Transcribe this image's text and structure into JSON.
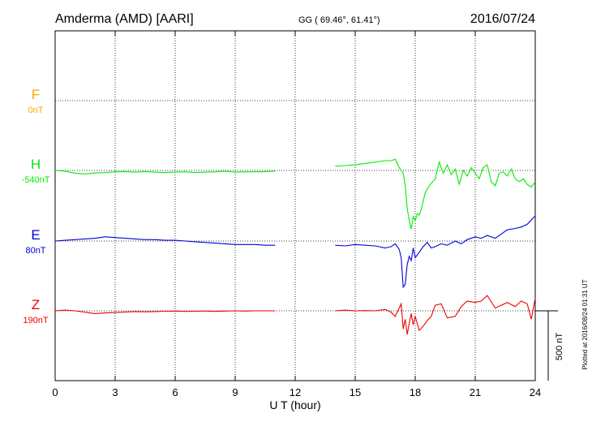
{
  "header": {
    "station": "Amderma (AMD)  [AARI]",
    "coords": "GG ( 69.46°,  61.41°)",
    "date": "2016/07/24"
  },
  "footer": {
    "plotted": "Plotted at 2016/08/24 01:31 UT"
  },
  "scale": {
    "label": "500 nT",
    "value_nT": 500
  },
  "chart_data": {
    "type": "line",
    "xlabel": "U T (hour)",
    "ylabel": "",
    "xlim": [
      0,
      24
    ],
    "xticks": [
      "0",
      "3",
      "6",
      "9",
      "12",
      "15",
      "18",
      "21",
      "24"
    ],
    "grid": true,
    "series": [
      {
        "name": "F",
        "baseline_label": "0nT",
        "color": "#ffa500",
        "x": [],
        "y": []
      },
      {
        "name": "H",
        "baseline_label": "-540nT",
        "color": "#00ee00",
        "x": [
          0,
          0.5,
          1.0,
          1.5,
          2.0,
          2.5,
          3.0,
          3.5,
          4.0,
          4.5,
          5.0,
          5.5,
          6.0,
          6.5,
          7.0,
          7.5,
          8.0,
          8.5,
          9.0,
          9.5,
          10.0,
          10.5,
          11.0,
          null,
          14.0,
          14.5,
          15.0,
          15.5,
          16.0,
          16.5,
          16.8,
          17.0,
          17.2,
          17.4,
          17.5,
          17.6,
          17.7,
          17.8,
          17.9,
          18.0,
          18.1,
          18.2,
          18.3,
          18.5,
          18.7,
          19.0,
          19.2,
          19.4,
          19.6,
          19.8,
          20.0,
          20.2,
          20.4,
          20.6,
          20.8,
          21.0,
          21.2,
          21.4,
          21.6,
          21.8,
          22.0,
          22.2,
          22.4,
          22.6,
          22.8,
          23.0,
          23.2,
          23.4,
          23.6,
          23.8,
          24.0
        ],
        "y": [
          -540,
          -545,
          -560,
          -565,
          -558,
          -555,
          -550,
          -548,
          -552,
          -548,
          -552,
          -555,
          -552,
          -550,
          -555,
          -552,
          -550,
          -545,
          -552,
          -550,
          -550,
          -548,
          -545,
          null,
          -510,
          -505,
          -500,
          -490,
          -480,
          -470,
          -470,
          -460,
          -520,
          -560,
          -650,
          -810,
          -900,
          -960,
          -870,
          -900,
          -850,
          -860,
          -820,
          -700,
          -650,
          -600,
          -480,
          -560,
          -500,
          -570,
          -530,
          -640,
          -540,
          -580,
          -520,
          -560,
          -600,
          -520,
          -500,
          -620,
          -650,
          -560,
          -550,
          -580,
          -530,
          -600,
          -620,
          -600,
          -640,
          -660,
          -620
        ]
      },
      {
        "name": "E",
        "baseline_label": "80nT",
        "color": "#0000dd",
        "x": [
          0,
          0.5,
          1.0,
          1.5,
          2.0,
          2.5,
          3.0,
          3.5,
          4.0,
          4.5,
          5.0,
          5.5,
          6.0,
          6.5,
          7.0,
          7.5,
          8.0,
          8.5,
          9.0,
          9.5,
          10.0,
          10.5,
          11.0,
          null,
          14.0,
          14.5,
          15.0,
          15.5,
          16.0,
          16.5,
          16.8,
          17.0,
          17.2,
          17.3,
          17.4,
          17.5,
          17.6,
          17.7,
          17.8,
          17.9,
          18.0,
          18.2,
          18.4,
          18.6,
          18.8,
          19.0,
          19.3,
          19.6,
          20.0,
          20.3,
          20.6,
          21.0,
          21.3,
          21.6,
          22.0,
          22.3,
          22.6,
          23.0,
          23.3,
          23.6,
          24.0
        ],
        "y": [
          80,
          85,
          90,
          95,
          100,
          110,
          105,
          100,
          95,
          90,
          90,
          85,
          85,
          80,
          75,
          70,
          65,
          60,
          55,
          55,
          55,
          50,
          50,
          null,
          50,
          45,
          55,
          50,
          45,
          30,
          40,
          60,
          20,
          -40,
          -250,
          -230,
          -90,
          -30,
          -60,
          30,
          -40,
          0,
          40,
          70,
          30,
          40,
          60,
          50,
          80,
          60,
          90,
          110,
          100,
          120,
          100,
          130,
          160,
          170,
          180,
          200,
          260
        ]
      },
      {
        "name": "Z",
        "baseline_label": "190nT",
        "color": "#ee0000",
        "x": [
          0,
          0.5,
          1.0,
          1.5,
          2.0,
          2.5,
          3.0,
          3.5,
          4.0,
          4.5,
          5.0,
          5.5,
          6.0,
          6.5,
          7.0,
          7.5,
          8.0,
          8.5,
          9.0,
          9.5,
          10.0,
          10.5,
          11.0,
          null,
          14.0,
          14.5,
          15.0,
          15.5,
          16.0,
          16.5,
          16.8,
          17.0,
          17.2,
          17.3,
          17.4,
          17.5,
          17.6,
          17.7,
          17.8,
          17.9,
          18.0,
          18.2,
          18.4,
          18.6,
          18.8,
          19.0,
          19.3,
          19.6,
          20.0,
          20.3,
          20.6,
          21.0,
          21.3,
          21.6,
          22.0,
          22.3,
          22.6,
          23.0,
          23.3,
          23.6,
          23.8,
          24.0
        ],
        "y": [
          190,
          195,
          190,
          180,
          170,
          175,
          178,
          182,
          185,
          183,
          185,
          187,
          188,
          186,
          187,
          188,
          186,
          188,
          190,
          188,
          190,
          190,
          190,
          null,
          190,
          195,
          190,
          192,
          190,
          200,
          180,
          150,
          210,
          240,
          60,
          130,
          20,
          100,
          170,
          90,
          150,
          50,
          80,
          120,
          150,
          230,
          240,
          140,
          150,
          220,
          260,
          250,
          260,
          300,
          210,
          230,
          250,
          220,
          260,
          240,
          130,
          280
        ]
      }
    ]
  }
}
